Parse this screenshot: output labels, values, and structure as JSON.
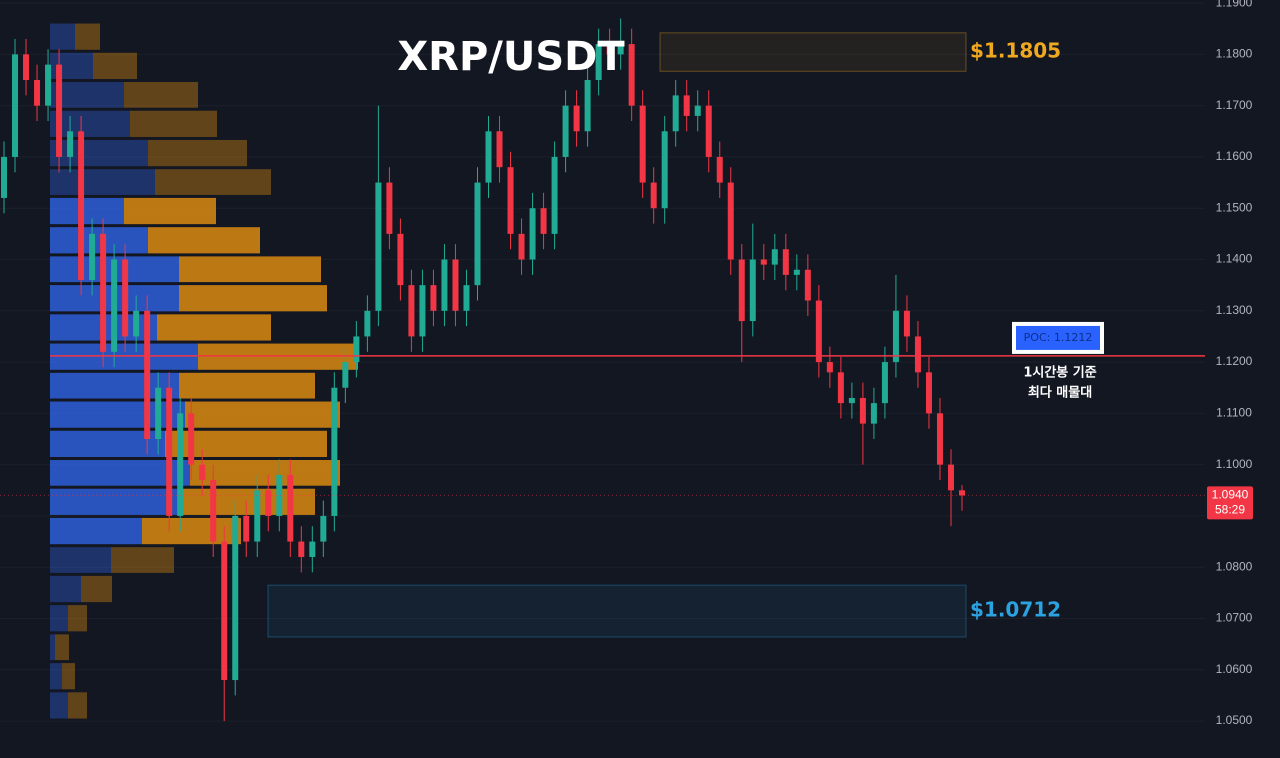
{
  "chart_data": {
    "type": "candlestick",
    "title": "XRP/USDT",
    "ylim": [
      1.0428,
      1.1906
    ],
    "yticks": [
      {
        "value": 1.05,
        "label": "1.0500"
      },
      {
        "value": 1.06,
        "label": "1.0600"
      },
      {
        "value": 1.07,
        "label": "1.0700"
      },
      {
        "value": 1.08,
        "label": "1.0800"
      },
      {
        "value": 1.09,
        "label": "1.0900"
      },
      {
        "value": 1.1,
        "label": "1.1000"
      },
      {
        "value": 1.11,
        "label": "1.1100"
      },
      {
        "value": 1.12,
        "label": "1.1200"
      },
      {
        "value": 1.13,
        "label": "1.1300"
      },
      {
        "value": 1.14,
        "label": "1.1400"
      },
      {
        "value": 1.15,
        "label": "1.1500"
      },
      {
        "value": 1.16,
        "label": "1.1600"
      },
      {
        "value": 1.17,
        "label": "1.1700"
      },
      {
        "value": 1.18,
        "label": "1.1800"
      },
      {
        "value": 1.19,
        "label": "1.1900"
      }
    ],
    "grid": true,
    "up_color": "#22ab94",
    "down_color": "#f23645",
    "open": [
      1.152,
      1.16,
      1.18,
      1.175,
      1.17,
      1.178,
      1.16,
      1.165,
      1.136,
      1.145,
      1.122,
      1.14,
      1.125,
      1.13,
      1.105,
      1.115,
      1.09,
      1.11,
      1.1,
      1.097,
      1.085,
      1.058,
      1.09,
      1.085,
      1.095,
      1.09,
      1.098,
      1.085,
      1.082,
      1.085,
      1.09,
      1.115,
      1.12,
      1.125,
      1.13,
      1.155,
      1.145,
      1.135,
      1.125,
      1.135,
      1.13,
      1.14,
      1.13,
      1.135,
      1.155,
      1.165,
      1.158,
      1.145,
      1.14,
      1.15,
      1.145,
      1.16,
      1.17,
      1.165,
      1.175,
      1.182,
      1.18,
      1.182,
      1.17,
      1.155,
      1.15,
      1.165,
      1.172,
      1.168,
      1.17,
      1.16,
      1.155,
      1.14,
      1.128,
      1.14,
      1.139,
      1.142,
      1.137,
      1.138,
      1.132,
      1.12,
      1.118,
      1.112,
      1.113,
      1.108,
      1.112,
      1.12,
      1.13,
      1.125,
      1.118,
      1.11,
      1.1,
      1.095
    ],
    "high": [
      1.163,
      1.183,
      1.183,
      1.178,
      1.181,
      1.181,
      1.168,
      1.168,
      1.148,
      1.148,
      1.143,
      1.143,
      1.133,
      1.133,
      1.118,
      1.118,
      1.113,
      1.113,
      1.103,
      1.1,
      1.088,
      1.093,
      1.093,
      1.098,
      1.098,
      1.101,
      1.101,
      1.088,
      1.088,
      1.093,
      1.118,
      1.123,
      1.128,
      1.133,
      1.17,
      1.158,
      1.148,
      1.138,
      1.138,
      1.138,
      1.143,
      1.143,
      1.138,
      1.158,
      1.168,
      1.168,
      1.161,
      1.148,
      1.153,
      1.153,
      1.163,
      1.173,
      1.173,
      1.178,
      1.185,
      1.185,
      1.187,
      1.185,
      1.173,
      1.158,
      1.168,
      1.175,
      1.175,
      1.173,
      1.173,
      1.163,
      1.158,
      1.143,
      1.147,
      1.143,
      1.145,
      1.145,
      1.141,
      1.141,
      1.135,
      1.123,
      1.121,
      1.116,
      1.116,
      1.115,
      1.123,
      1.137,
      1.133,
      1.128,
      1.121,
      1.113,
      1.103,
      1.096
    ],
    "low": [
      1.149,
      1.157,
      1.172,
      1.167,
      1.167,
      1.157,
      1.157,
      1.133,
      1.133,
      1.119,
      1.119,
      1.122,
      1.122,
      1.102,
      1.102,
      1.087,
      1.087,
      1.097,
      1.094,
      1.082,
      1.05,
      1.055,
      1.082,
      1.082,
      1.087,
      1.087,
      1.082,
      1.079,
      1.079,
      1.082,
      1.087,
      1.112,
      1.117,
      1.122,
      1.127,
      1.142,
      1.132,
      1.122,
      1.122,
      1.127,
      1.127,
      1.127,
      1.127,
      1.132,
      1.152,
      1.155,
      1.142,
      1.137,
      1.137,
      1.142,
      1.142,
      1.157,
      1.162,
      1.162,
      1.172,
      1.177,
      1.177,
      1.167,
      1.152,
      1.147,
      1.147,
      1.162,
      1.165,
      1.165,
      1.157,
      1.152,
      1.137,
      1.12,
      1.125,
      1.136,
      1.136,
      1.134,
      1.134,
      1.129,
      1.117,
      1.115,
      1.109,
      1.109,
      1.1,
      1.105,
      1.109,
      1.117,
      1.122,
      1.115,
      1.107,
      1.097,
      1.088,
      1.091
    ],
    "close": [
      1.16,
      1.18,
      1.175,
      1.17,
      1.178,
      1.16,
      1.165,
      1.136,
      1.145,
      1.122,
      1.14,
      1.125,
      1.13,
      1.105,
      1.115,
      1.09,
      1.11,
      1.1,
      1.097,
      1.085,
      1.058,
      1.09,
      1.085,
      1.095,
      1.09,
      1.098,
      1.085,
      1.082,
      1.085,
      1.09,
      1.115,
      1.12,
      1.125,
      1.13,
      1.155,
      1.145,
      1.135,
      1.125,
      1.135,
      1.13,
      1.14,
      1.13,
      1.135,
      1.155,
      1.165,
      1.158,
      1.145,
      1.14,
      1.15,
      1.145,
      1.16,
      1.17,
      1.165,
      1.175,
      1.182,
      1.18,
      1.182,
      1.17,
      1.155,
      1.15,
      1.165,
      1.172,
      1.168,
      1.17,
      1.16,
      1.155,
      1.14,
      1.128,
      1.14,
      1.139,
      1.142,
      1.137,
      1.138,
      1.132,
      1.12,
      1.118,
      1.112,
      1.113,
      1.108,
      1.112,
      1.12,
      1.13,
      1.125,
      1.118,
      1.11,
      1.1,
      1.095,
      1.094
    ],
    "volume_profile": {
      "bins": [
        1.0502,
        1.0559,
        1.0616,
        1.0672,
        1.0729,
        1.0786,
        1.0842,
        1.0899,
        1.0956,
        1.1012,
        1.1069,
        1.1126,
        1.1182,
        1.1239,
        1.1296,
        1.1353,
        1.1409,
        1.1466,
        1.1523,
        1.1579,
        1.1636,
        1.1693,
        1.1749,
        1.1806,
        1.1863
      ],
      "buy": [
        18,
        12,
        5,
        18,
        31,
        61,
        92,
        129,
        140,
        115,
        135,
        129,
        148,
        107,
        129,
        129,
        98,
        74,
        105,
        98,
        80,
        74,
        43,
        25
      ],
      "sell": [
        19,
        13,
        14,
        19,
        31,
        63,
        99,
        136,
        150,
        162,
        155,
        136,
        160,
        114,
        148,
        142,
        112,
        92,
        116,
        99,
        87,
        74,
        44,
        25
      ],
      "buy_color": "#2f5fd8",
      "sell_color": "#d98a10",
      "value_area": [
        1.0842,
        1.1523
      ]
    },
    "zones": [
      {
        "label": "$1.1805",
        "top": 1.1842,
        "bottom": 1.1767,
        "color": "#f0a81e"
      },
      {
        "label": "$1.0712",
        "top": 1.0765,
        "bottom": 1.0664,
        "color": "#2aa3e0"
      }
    ],
    "poc": {
      "label": "POC: 1.1212",
      "value": 1.1212,
      "color": "#f23645",
      "note": [
        "1시간봉 기준",
        "최다 매물대"
      ]
    },
    "last_price": {
      "label": "1.0940",
      "value": 1.094,
      "timer": "58:29"
    }
  }
}
